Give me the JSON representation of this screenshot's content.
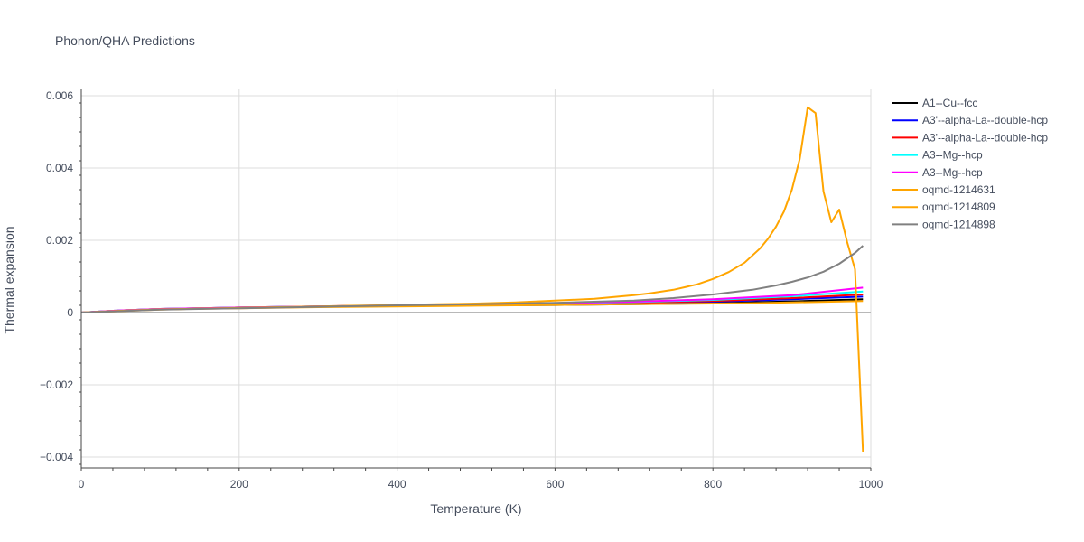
{
  "chart_data": {
    "type": "line",
    "title": "Phonon/QHA Predictions",
    "xlabel": "Temperature (K)",
    "ylabel": "Thermal expansion",
    "xlim": [
      0,
      1000
    ],
    "ylim": [
      -0.0043,
      0.0062
    ],
    "xticks": [
      0,
      200,
      400,
      600,
      800,
      1000
    ],
    "xtick_labels": [
      "0",
      "200",
      "400",
      "600",
      "800",
      "1000"
    ],
    "yticks": [
      -0.004,
      -0.002,
      0,
      0.002,
      0.004,
      0.006
    ],
    "ytick_labels": [
      "−0.004",
      "−0.002",
      "0",
      "0.002",
      "0.004",
      "0.006"
    ],
    "grid": true,
    "legend_position": "top-right",
    "series": [
      {
        "name": "A1--Cu--fcc",
        "color": "#000000",
        "x": [
          0,
          50,
          100,
          200,
          300,
          400,
          500,
          600,
          700,
          800,
          900,
          990
        ],
        "y": [
          0,
          5e-05,
          9e-05,
          0.00013,
          0.00016,
          0.00018,
          0.0002,
          0.00021,
          0.00023,
          0.00026,
          0.00031,
          0.00037
        ]
      },
      {
        "name": "A3'--alpha-La--double-hcp",
        "color": "#0000ff",
        "x": [
          0,
          50,
          100,
          200,
          300,
          400,
          500,
          600,
          700,
          800,
          900,
          990
        ],
        "y": [
          0,
          6e-05,
          0.0001,
          0.00014,
          0.00017,
          0.00019,
          0.00021,
          0.00023,
          0.00026,
          0.0003,
          0.00037,
          0.00044
        ]
      },
      {
        "name": "A3'--alpha-La--double-hcp",
        "color": "#ff0000",
        "x": [
          0,
          50,
          100,
          200,
          300,
          400,
          500,
          600,
          700,
          800,
          900,
          990
        ],
        "y": [
          0,
          6e-05,
          0.0001,
          0.00014,
          0.00017,
          0.00019,
          0.00021,
          0.00024,
          0.00027,
          0.00032,
          0.0004,
          0.0005
        ]
      },
      {
        "name": "A3--Mg--hcp",
        "color": "#00ffff",
        "x": [
          0,
          50,
          100,
          200,
          300,
          400,
          500,
          600,
          700,
          800,
          900,
          990
        ],
        "y": [
          0,
          6e-05,
          0.0001,
          0.00014,
          0.00017,
          0.00019,
          0.00022,
          0.00025,
          0.00029,
          0.00035,
          0.00045,
          0.00058
        ]
      },
      {
        "name": "A3--Mg--hcp",
        "color": "#ff00ff",
        "x": [
          0,
          50,
          100,
          200,
          300,
          400,
          500,
          600,
          700,
          800,
          900,
          990
        ],
        "y": [
          0,
          6e-05,
          0.0001,
          0.00014,
          0.00017,
          0.0002,
          0.00023,
          0.00026,
          0.0003,
          0.00037,
          0.00048,
          0.00069
        ]
      },
      {
        "name": "oqmd-1214631",
        "color": "#ffa500",
        "x": [
          0,
          50,
          100,
          200,
          300,
          400,
          500,
          600,
          700,
          800,
          850,
          900,
          950,
          990
        ],
        "y": [
          0,
          5e-05,
          9e-05,
          0.00012,
          0.00015,
          0.00017,
          0.00019,
          0.00021,
          0.00023,
          0.00025,
          0.00026,
          0.00028,
          0.0003,
          0.00032
        ]
      },
      {
        "name": "oqmd-1214809",
        "color": "#ffa500",
        "x": [
          0,
          50,
          100,
          150,
          200,
          250,
          300,
          350,
          400,
          450,
          500,
          550,
          600,
          650,
          700,
          720,
          750,
          780,
          800,
          820,
          840,
          860,
          870,
          880,
          890,
          900,
          910,
          920,
          930,
          940,
          950,
          960,
          970,
          980,
          990
        ],
        "y": [
          0,
          4e-05,
          8e-05,
          0.00011,
          0.00013,
          0.00015,
          0.00017,
          0.00019,
          0.00021,
          0.00023,
          0.00025,
          0.00028,
          0.00033,
          0.00038,
          0.00048,
          0.00053,
          0.00063,
          0.00078,
          0.00093,
          0.00112,
          0.00138,
          0.00178,
          0.00205,
          0.00238,
          0.0028,
          0.0034,
          0.00425,
          0.00568,
          0.00552,
          0.00335,
          0.0025,
          0.00285,
          0.00195,
          0.0012,
          -0.00385
        ]
      },
      {
        "name": "oqmd-1214898",
        "color": "#808080",
        "x": [
          0,
          50,
          100,
          200,
          300,
          400,
          500,
          600,
          700,
          750,
          800,
          850,
          880,
          900,
          920,
          940,
          960,
          980,
          990
        ],
        "y": [
          0,
          4e-05,
          8e-05,
          0.00012,
          0.00016,
          0.0002,
          0.00023,
          0.00027,
          0.00033,
          0.0004,
          0.0005,
          0.00063,
          0.00075,
          0.00085,
          0.00097,
          0.00113,
          0.00135,
          0.00165,
          0.00185
        ]
      }
    ]
  }
}
